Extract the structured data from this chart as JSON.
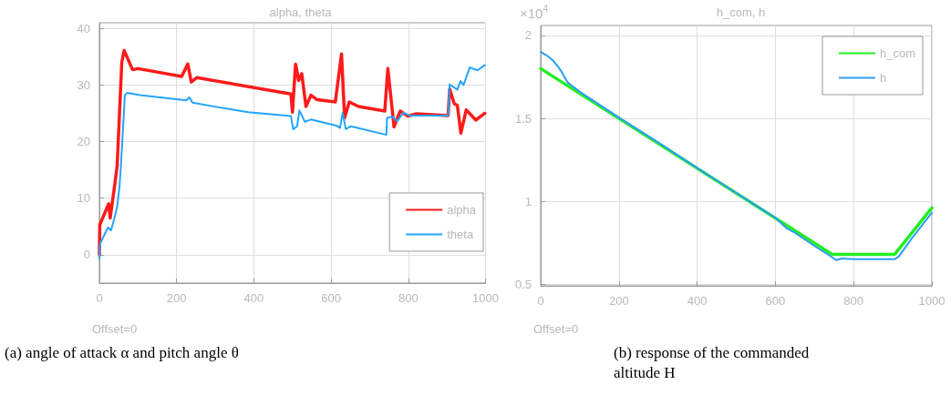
{
  "chart_data": [
    {
      "type": "line",
      "title": "alpha, theta",
      "annotations": [
        "Offset=0",
        "(a) angle of attack α and pitch angle θ"
      ],
      "xlim": [
        0,
        1000
      ],
      "xticks": [
        0,
        200,
        400,
        600,
        800,
        1000
      ],
      "ylim": [
        -5,
        41
      ],
      "yticks": [
        0,
        10,
        20,
        30,
        40
      ],
      "grid": true,
      "legend": "bottom right",
      "marker": "none",
      "line_style": "solid",
      "series": [
        {
          "name": "alpha",
          "color": "#ff1a1a",
          "x": [
            0,
            1,
            24,
            28,
            40,
            46,
            58,
            64,
            86,
            100,
            213,
            229,
            238,
            252,
            496,
            500,
            508,
            516,
            524,
            535,
            548,
            564,
            611,
            627,
            635,
            647,
            671,
            739,
            747,
            763,
            779,
            799,
            819,
            903,
            907,
            919,
            927,
            936,
            950,
            975,
            998
          ],
          "values": [
            0,
            5.3,
            9.0,
            6.5,
            12.5,
            15.7,
            34,
            36.1,
            32.7,
            32.9,
            31.5,
            33.7,
            30.5,
            31.3,
            28.4,
            25.2,
            33.7,
            30.8,
            32,
            26.2,
            28.2,
            27.4,
            27,
            35.5,
            24.2,
            27,
            26.2,
            25.4,
            32.9,
            22.6,
            25.4,
            24.5,
            24.9,
            24.6,
            29.3,
            26.7,
            26.4,
            21.5,
            25.6,
            23.8,
            25
          ]
        },
        {
          "name": "theta",
          "color": "#22a4ff",
          "x": [
            0,
            2,
            22,
            30,
            38,
            46,
            52,
            56,
            66,
            72,
            105,
            225,
            233,
            241,
            305,
            385,
            496,
            502,
            512,
            518,
            532,
            548,
            615,
            623,
            630,
            638,
            651,
            743,
            745,
            759,
            771,
            787,
            803,
            903,
            907,
            927,
            935,
            943,
            959,
            979,
            998
          ],
          "values": [
            -0.7,
            2.0,
            4.8,
            4.3,
            6.2,
            8.5,
            12,
            16,
            28.2,
            28.6,
            28.2,
            27.3,
            27.8,
            26.9,
            26.1,
            25.2,
            24.5,
            22.2,
            22.7,
            25.5,
            23.5,
            23.9,
            22.8,
            22.4,
            25.1,
            22.2,
            22.7,
            21.2,
            24.2,
            24.4,
            23.6,
            25.1,
            24.6,
            24.6,
            30.1,
            29.2,
            30.7,
            30.0,
            33.1,
            32.6,
            33.5
          ]
        }
      ]
    },
    {
      "type": "line",
      "title": "h_com, h",
      "annotations": [
        "×10$^{4}$",
        "Offset=0",
        "(b) response of the commanded altitude H"
      ],
      "xlim": [
        0,
        1000
      ],
      "xticks": [
        0,
        200,
        400,
        600,
        800,
        1000
      ],
      "ylim": [
        0.49,
        2.06
      ],
      "yticks": [
        0.5,
        1,
        1.5,
        2
      ],
      "grid": true,
      "legend": "top right",
      "marker": "none",
      "line_style": "solid",
      "series": [
        {
          "name": "h_com",
          "color": "#22ee22",
          "x": [
            0,
            745,
            905,
            1000
          ],
          "values": [
            1.8,
            0.68,
            0.68,
            0.96
          ]
        },
        {
          "name": "h",
          "color": "#2a9df4",
          "x": [
            0,
            15,
            31,
            45,
            55,
            69,
            100,
            200,
            300,
            400,
            500,
            520,
            600,
            630,
            650,
            700,
            740,
            755,
            770,
            800,
            905,
            915,
            950,
            1000
          ],
          "values": [
            1.9,
            1.88,
            1.85,
            1.81,
            1.775,
            1.716,
            1.66,
            1.505,
            1.355,
            1.2,
            1.05,
            1.02,
            0.9,
            0.835,
            0.81,
            0.73,
            0.67,
            0.645,
            0.655,
            0.65,
            0.65,
            0.665,
            0.78,
            0.93
          ]
        }
      ]
    }
  ]
}
